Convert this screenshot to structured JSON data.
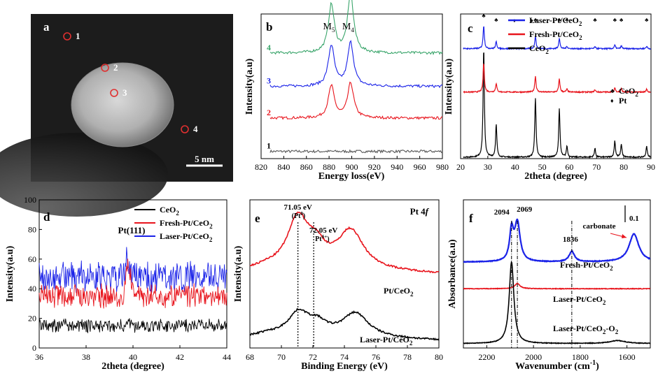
{
  "chart_data": [
    {
      "id": "a",
      "type": "image",
      "panel_label": "a",
      "points": [
        {
          "label": "1",
          "color": "#e03030"
        },
        {
          "label": "2",
          "color": "#e03030"
        },
        {
          "label": "3",
          "color": "#e03030"
        },
        {
          "label": "4",
          "color": "#e03030"
        }
      ],
      "scale_bar": "5 nm"
    },
    {
      "id": "b",
      "type": "line",
      "panel_label": "b",
      "xlabel": "Energy loss(eV)",
      "ylabel": "Intensity(a.u)",
      "xlim": [
        820,
        980
      ],
      "xticks": [
        820,
        840,
        860,
        880,
        900,
        920,
        940,
        960,
        980
      ],
      "peak_labels": [
        {
          "main": "M",
          "sub": "5",
          "x": 882
        },
        {
          "main": "M",
          "sub": "4",
          "x": 899
        }
      ],
      "series": [
        {
          "name": "1",
          "color": "#555555",
          "offset": 0.05,
          "peaks": []
        },
        {
          "name": "2",
          "color": "#e8141c",
          "offset": 0.28,
          "peaks": [
            [
              882,
              0.22
            ],
            [
              899,
              0.24
            ]
          ]
        },
        {
          "name": "3",
          "color": "#1a22e8",
          "offset": 0.5,
          "peaks": [
            [
              882,
              0.28
            ],
            [
              899,
              0.3
            ]
          ]
        },
        {
          "name": "4",
          "color": "#3aa56b",
          "offset": 0.73,
          "peaks": [
            [
              882,
              0.33
            ],
            [
              899,
              0.4
            ]
          ]
        }
      ]
    },
    {
      "id": "c",
      "type": "line",
      "panel_label": "c",
      "xlabel": "2theta (degree)",
      "ylabel": "Intensity(a.u)",
      "xlim": [
        20,
        90
      ],
      "xticks": [
        20,
        30,
        40,
        50,
        60,
        70,
        80,
        90
      ],
      "legend": [
        {
          "main": "Laser-Pt/CeO",
          "sub": "2",
          "color": "#1a22e8"
        },
        {
          "main": "Fresh-Pt/CeO",
          "sub": "2",
          "color": "#e8141c"
        },
        {
          "main": "CeO",
          "sub": "2",
          "color": "#000000"
        }
      ],
      "marker_legend": [
        {
          "symbol": "♣",
          "main": "CeO",
          "sub": "2"
        },
        {
          "symbol": "♦",
          "main": "Pt",
          "sub": ""
        }
      ],
      "ceo2_peaks": [
        28.5,
        33.1,
        47.5,
        56.3,
        59.1,
        69.4,
        76.7,
        79.1,
        88.4
      ],
      "pt_peaks": [
        39.8,
        46.2
      ],
      "series": [
        {
          "name": "CeO2",
          "color": "#000000",
          "offset": 0.0,
          "scale": 0.75
        },
        {
          "name": "Fresh-Pt/CeO2",
          "color": "#e8141c",
          "offset": 0.45,
          "scale": 0.2
        },
        {
          "name": "Laser-Pt/CeO2",
          "color": "#1a22e8",
          "offset": 0.75,
          "scale": 0.16
        }
      ]
    },
    {
      "id": "d",
      "type": "line",
      "panel_label": "d",
      "xlabel": "2theta (degree)",
      "ylabel": "Intensity(a.u)",
      "xlim": [
        36,
        44
      ],
      "ylim": [
        0,
        100
      ],
      "xticks": [
        36,
        38,
        40,
        42,
        44
      ],
      "yticks": [
        0,
        20,
        40,
        60,
        80,
        100
      ],
      "annotation": "Pt(111)",
      "legend": [
        {
          "main": "CeO",
          "sub": "2",
          "color": "#000000"
        },
        {
          "main": "Fresh-Pt/CeO",
          "sub": "2",
          "color": "#e8141c"
        },
        {
          "main": "Laser-Pt/CeO",
          "sub": "2",
          "color": "#1a22e8"
        }
      ],
      "series": [
        {
          "name": "CeO2",
          "color": "#000000",
          "mean": 15,
          "noise": 4,
          "peak": 3
        },
        {
          "name": "Fresh-Pt/CeO2",
          "color": "#e8141c",
          "mean": 35,
          "noise": 7,
          "peak": 25
        },
        {
          "name": "Laser-Pt/CeO2",
          "color": "#1a22e8",
          "mean": 48,
          "noise": 9,
          "peak": 15
        }
      ]
    },
    {
      "id": "e",
      "type": "line",
      "panel_label": "e",
      "xlabel": "Binding Energy (eV)",
      "ylabel": "Intensity(a.u)",
      "xlim": [
        68,
        80
      ],
      "xticks": [
        68,
        70,
        72,
        74,
        76,
        78,
        80
      ],
      "title": {
        "main": "Pt 4",
        "italic": "f"
      },
      "annotations": [
        {
          "line1": "71.05 eV",
          "line2_main": "(Pt",
          "line2_sup": "0",
          "line2_end": ")",
          "x": 71.05
        },
        {
          "line1": "72.05 eV",
          "line2_main": "Pt",
          "line2_sup": "δ+",
          "line2_end": ")",
          "x": 72.05
        }
      ],
      "series": [
        {
          "name": "Pt/CeO2",
          "label_main": "Pt/CeO",
          "label_sub": "2",
          "color": "#e8141c",
          "base": 0.5,
          "peaks": [
            [
              71.05,
              0.33,
              0.8
            ],
            [
              72.2,
              0.12,
              0.7
            ],
            [
              74.4,
              0.26,
              1.0
            ]
          ]
        },
        {
          "name": "Laser-Pt/CeO2",
          "label_main": "Laser-Pt/CeO",
          "label_sub": "2",
          "color": "#000000",
          "base": 0.05,
          "peaks": [
            [
              71.1,
              0.15,
              0.8
            ],
            [
              72.3,
              0.07,
              0.7
            ],
            [
              74.7,
              0.16,
              1.0
            ]
          ]
        }
      ]
    },
    {
      "id": "f",
      "type": "line",
      "panel_label": "f",
      "xlabel_main": "Wavenumber (cm",
      "xlabel_sup": "-1",
      "xlabel_end": ")",
      "ylabel": "Absorbance(a.u)",
      "xlim": [
        2300,
        1500
      ],
      "xticks": [
        2200,
        2000,
        1800,
        1600
      ],
      "peak_labels": [
        "2094",
        "2069",
        "1836",
        "carbonate"
      ],
      "scale_label": "0.1",
      "series": [
        {
          "name": "Fresh-Pt/CeO2",
          "label_main": "Fresh-Pt/CeO",
          "label_sub": "2",
          "color": "#1a22e8"
        },
        {
          "name": "Laser-Pt/CeO2",
          "label_main": "Laser-Pt/CeO",
          "label_sub": "2",
          "color": "#e8141c"
        },
        {
          "name": "Laser-Pt/CeO2-O2",
          "label_main": "Laser-Pt/CeO",
          "label_sub": "2",
          "label_end": "-O",
          "label_sub2": "2",
          "color": "#000000"
        }
      ]
    }
  ]
}
